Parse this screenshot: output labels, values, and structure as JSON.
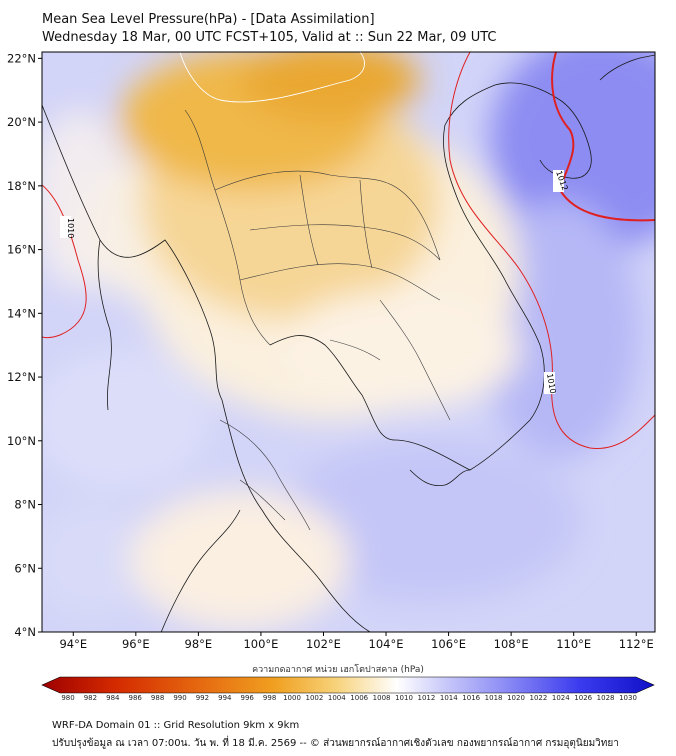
{
  "header": {
    "title_line1": "Mean Sea Level Pressure(hPa) - [Data Assimilation]",
    "title_line2": "Wednesday 18 Mar, 00 UTC FCST+105, Valid at :: Sun 22 Mar, 09 UTC"
  },
  "map": {
    "lon_ticks": [
      "94°E",
      "96°E",
      "98°E",
      "100°E",
      "102°E",
      "104°E",
      "106°E",
      "108°E",
      "110°E",
      "112°E"
    ],
    "lat_ticks": [
      "22°N",
      "20°N",
      "18°N",
      "16°N",
      "14°N",
      "12°N",
      "10°N",
      "8°N",
      "6°N",
      "4°N"
    ],
    "lon_range": [
      93.0,
      112.6
    ],
    "lat_range": [
      4.0,
      22.2
    ],
    "contour_labels": [
      {
        "value": "1010",
        "lon": 93.7,
        "lat": 16.6
      },
      {
        "value": "1012",
        "lon": 109.0,
        "lat": 17.9
      },
      {
        "value": "1010",
        "lon": 108.9,
        "lat": 11.8
      }
    ],
    "colors": {
      "low_pressure": "#e8a828",
      "high_pressure": "#6f6ff0",
      "neutral": "#ffffff",
      "contour": "#e02020"
    }
  },
  "colorbar": {
    "label": "ความกดอากาศ หน่วย เฮกโตปาสคาล (hPa)",
    "ticks": [
      "980",
      "982",
      "984",
      "986",
      "988",
      "990",
      "992",
      "994",
      "996",
      "998",
      "1000",
      "1002",
      "1004",
      "1006",
      "1008",
      "1010",
      "1012",
      "1014",
      "1016",
      "1018",
      "1020",
      "1022",
      "1024",
      "1026",
      "1028",
      "1030"
    ]
  },
  "footer": {
    "line1": "WRF-DA Domain 01 :: Grid Resolution 9km x 9km",
    "line2": "ปรับปรุงข้อมูล ณ เวลา 07:00น. วัน พ. ที่ 18 มี.ค. 2569 -- © ส่วนพยากรณ์อากาศเชิงตัวเลข กองพยากรณ์อากาศ กรมอุตุนิยมวิทยา"
  }
}
